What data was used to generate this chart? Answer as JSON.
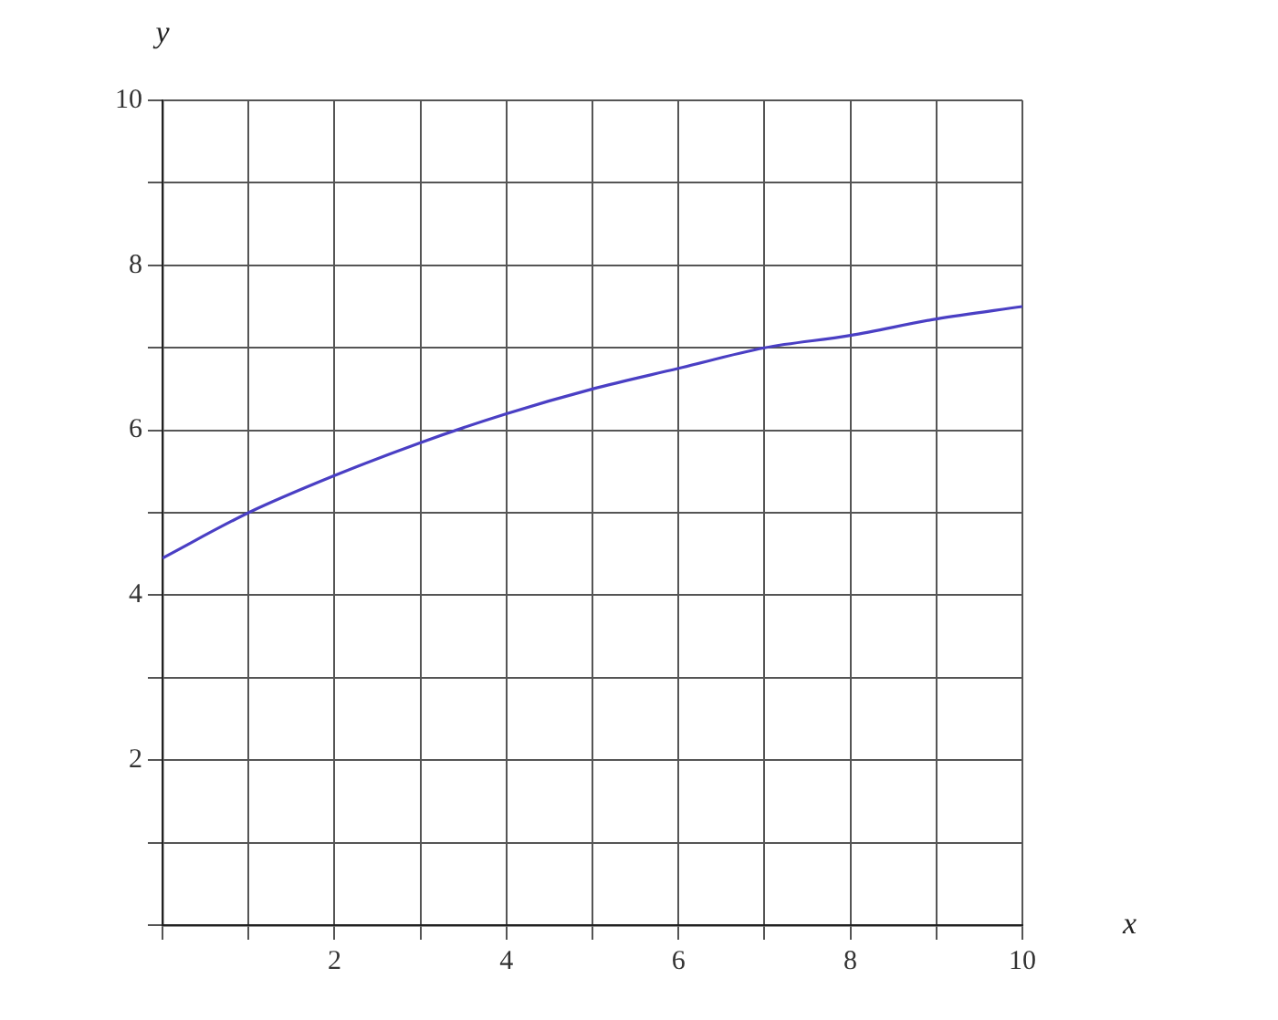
{
  "chart_data": {
    "type": "line",
    "xlabel": "x",
    "ylabel": "y",
    "x": [
      0,
      1,
      2,
      3,
      4,
      5,
      6,
      7,
      8,
      9,
      10
    ],
    "series": [
      {
        "color": "#4a3fc4",
        "values": [
          4.45,
          5.0,
          5.45,
          5.85,
          6.2,
          6.5,
          6.75,
          7.0,
          7.15,
          7.35,
          7.5
        ]
      }
    ],
    "xlim": [
      0,
      10
    ],
    "ylim": [
      0,
      10
    ],
    "xticks": [
      {
        "value": 0,
        "label": null
      },
      {
        "value": 1,
        "label": null
      },
      2,
      {
        "value": 3,
        "label": null
      },
      4,
      {
        "value": 5,
        "label": null
      },
      6,
      {
        "value": 7,
        "label": null
      },
      8,
      {
        "value": 9,
        "label": null
      },
      10
    ],
    "yticks": [
      {
        "value": 0,
        "label": null
      },
      {
        "value": 1,
        "label": null
      },
      2,
      {
        "value": 3,
        "label": null
      },
      4,
      {
        "value": 5,
        "label": null
      },
      6,
      {
        "value": 7,
        "label": null
      },
      8,
      {
        "value": 9,
        "label": null
      },
      10
    ],
    "grid": true,
    "marker": "none",
    "line_style": "solid",
    "legend": false
  }
}
